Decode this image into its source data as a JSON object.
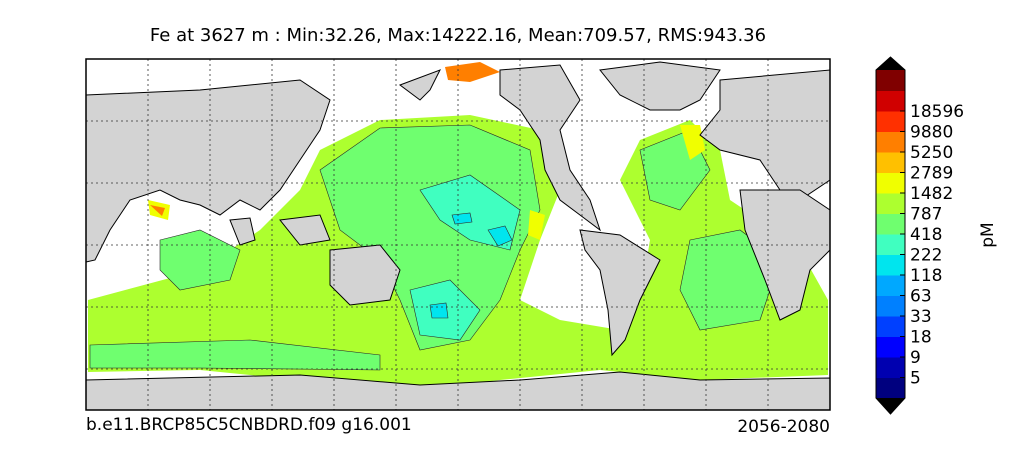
{
  "title": "Fe at 3627 m : Min:32.26, Max:14222.16, Mean:709.57, RMS:943.36",
  "colorbar": {
    "label": "pM",
    "levels": [
      5,
      9,
      18,
      33,
      63,
      118,
      222,
      418,
      787,
      1482,
      2789,
      5250,
      9880,
      18596
    ],
    "colors": [
      "#00007f",
      "#0000b0",
      "#0000ff",
      "#0040ff",
      "#0080ff",
      "#00a8ff",
      "#00e5ee",
      "#40ffc0",
      "#6fff6f",
      "#adff2f",
      "#f0ff00",
      "#ffc000",
      "#ff7f00",
      "#ff3000",
      "#d00000",
      "#800000"
    ],
    "extend_colors": [
      "#000000",
      "#000000"
    ]
  },
  "footer": {
    "left": "b.e11.BRCP85C5CNBDRD.f09 g16.001",
    "right": "2056-2080"
  }
}
